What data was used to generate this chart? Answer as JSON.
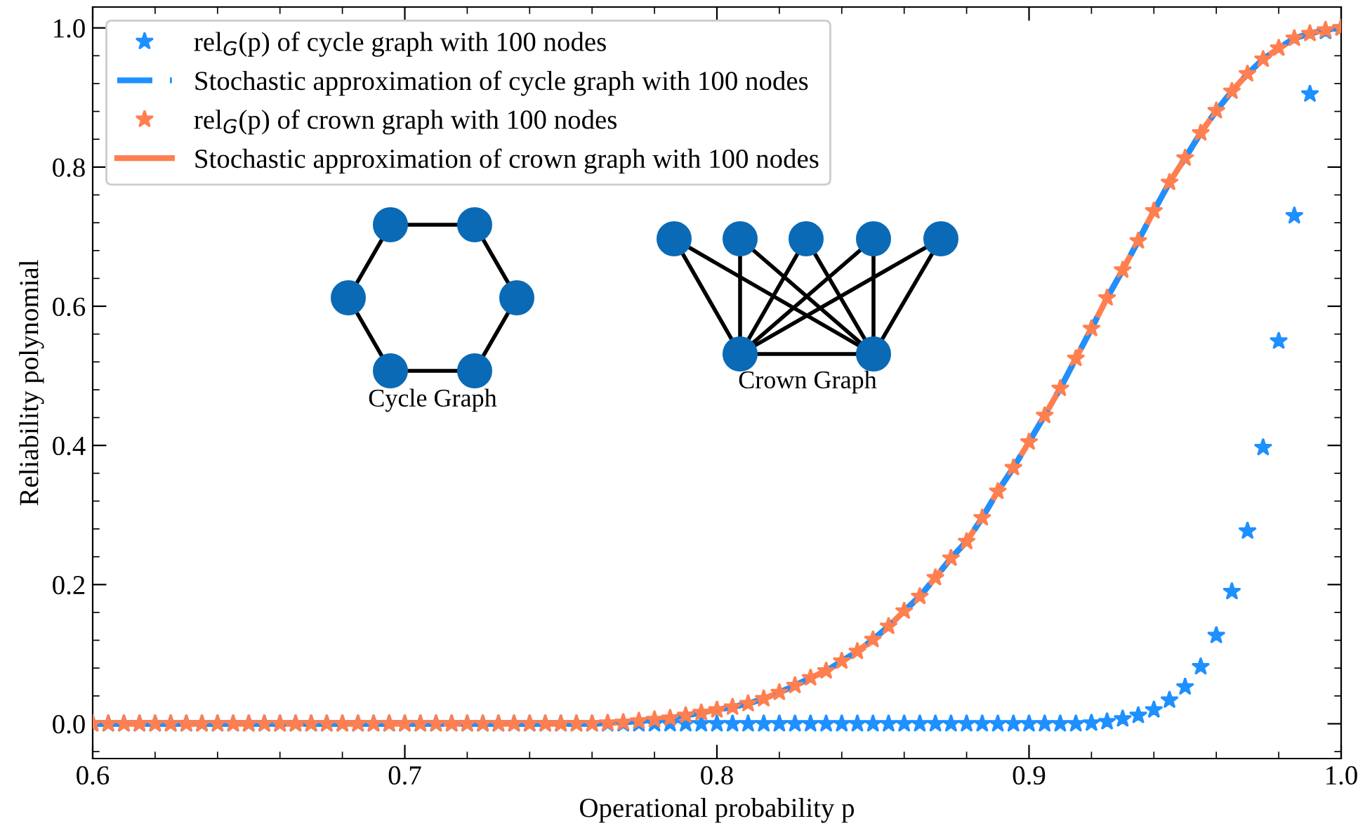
{
  "chart_data": {
    "type": "line",
    "xlabel": "Operational probability p",
    "ylabel": "Reliability polynomial",
    "x": [
      0.6,
      0.605,
      0.61,
      0.615,
      0.62,
      0.625,
      0.63,
      0.635,
      0.64,
      0.645,
      0.65,
      0.655,
      0.66,
      0.665,
      0.67,
      0.675,
      0.68,
      0.685,
      0.69,
      0.695,
      0.7,
      0.705,
      0.71,
      0.715,
      0.72,
      0.725,
      0.73,
      0.735,
      0.74,
      0.745,
      0.75,
      0.755,
      0.76,
      0.765,
      0.77,
      0.775,
      0.78,
      0.785,
      0.79,
      0.795,
      0.8,
      0.805,
      0.81,
      0.815,
      0.82,
      0.825,
      0.83,
      0.835,
      0.84,
      0.845,
      0.85,
      0.855,
      0.86,
      0.865,
      0.87,
      0.875,
      0.88,
      0.885,
      0.89,
      0.895,
      0.9,
      0.905,
      0.91,
      0.915,
      0.92,
      0.925,
      0.93,
      0.935,
      0.94,
      0.945,
      0.95,
      0.955,
      0.96,
      0.965,
      0.97,
      0.975,
      0.98,
      0.985,
      0.99,
      0.995,
      1.0
    ],
    "series": [
      {
        "name": "rel$_{G}$(p) of cycle graph with 100 nodes",
        "type": "scatter",
        "marker": "star",
        "color": "#1e90ff",
        "values": [
          0,
          0,
          0,
          0,
          0,
          0,
          0,
          0,
          0,
          0,
          0,
          0,
          0,
          0,
          0,
          0,
          0,
          0,
          0,
          0,
          0,
          0,
          0,
          0,
          0,
          0,
          0,
          0,
          0,
          0,
          0,
          0,
          0,
          0,
          0,
          0,
          0,
          0,
          0,
          0,
          0,
          0,
          0,
          0,
          0,
          0,
          0,
          0,
          0,
          0,
          0,
          0,
          0,
          0,
          0,
          0,
          0,
          0,
          0,
          0,
          0,
          0,
          0,
          0,
          0.001,
          0.003,
          0.007,
          0.012,
          0.02,
          0.034,
          0.053,
          0.082,
          0.127,
          0.19,
          0.277,
          0.397,
          0.55,
          0.73,
          0.905,
          0.995,
          1.0
        ]
      },
      {
        "name": "Stochastic approximation of cycle graph with 100 nodes",
        "line_style": "dashed",
        "color": "#1e90ff",
        "values": [
          0,
          0,
          0,
          0,
          0,
          0,
          0,
          0,
          0,
          0,
          0,
          0,
          0,
          0,
          0,
          0,
          0,
          0,
          0,
          0,
          0,
          0,
          0,
          0,
          0,
          0,
          0,
          0,
          0,
          0,
          0,
          0,
          0,
          0.001,
          0.002,
          0.004,
          0.006,
          0.008,
          0.012,
          0.016,
          0.02,
          0.024,
          0.029,
          0.036,
          0.045,
          0.055,
          0.066,
          0.076,
          0.09,
          0.104,
          0.121,
          0.14,
          0.162,
          0.183,
          0.21,
          0.238,
          0.262,
          0.296,
          0.334,
          0.368,
          0.405,
          0.443,
          0.482,
          0.525,
          0.568,
          0.612,
          0.652,
          0.694,
          0.737,
          0.778,
          0.813,
          0.849,
          0.881,
          0.909,
          0.934,
          0.955,
          0.971,
          0.985,
          0.992,
          0.997,
          1.0
        ]
      },
      {
        "name": "rel$_{G}$(p) of crown graph with 100 nodes",
        "type": "scatter",
        "marker": "star",
        "color": "#ff7f50",
        "values": [
          0,
          0,
          0,
          0,
          0,
          0,
          0,
          0,
          0,
          0,
          0,
          0,
          0,
          0,
          0,
          0,
          0,
          0,
          0,
          0,
          0,
          0,
          0,
          0,
          0,
          0,
          0,
          0,
          0,
          0,
          0,
          0,
          0,
          0.001,
          0.002,
          0.004,
          0.006,
          0.008,
          0.012,
          0.016,
          0.02,
          0.024,
          0.029,
          0.036,
          0.045,
          0.055,
          0.066,
          0.076,
          0.09,
          0.104,
          0.121,
          0.14,
          0.162,
          0.183,
          0.21,
          0.238,
          0.262,
          0.296,
          0.334,
          0.368,
          0.405,
          0.443,
          0.482,
          0.525,
          0.568,
          0.612,
          0.652,
          0.694,
          0.737,
          0.778,
          0.813,
          0.849,
          0.881,
          0.909,
          0.934,
          0.955,
          0.971,
          0.985,
          0.992,
          0.997,
          1.0
        ]
      },
      {
        "name": "Stochastic approximation of crown graph with 100 nodes",
        "line_style": "solid",
        "color": "#ff7f50",
        "values": [
          0,
          0,
          0,
          0,
          0,
          0,
          0,
          0,
          0,
          0,
          0,
          0,
          0,
          0,
          0,
          0,
          0,
          0,
          0,
          0,
          0,
          0,
          0,
          0,
          0,
          0,
          0,
          0,
          0,
          0,
          0,
          0,
          0,
          0.001,
          0.002,
          0.004,
          0.006,
          0.008,
          0.012,
          0.016,
          0.02,
          0.024,
          0.029,
          0.036,
          0.045,
          0.055,
          0.066,
          0.076,
          0.09,
          0.104,
          0.121,
          0.14,
          0.162,
          0.183,
          0.21,
          0.238,
          0.262,
          0.296,
          0.334,
          0.368,
          0.405,
          0.443,
          0.482,
          0.525,
          0.568,
          0.612,
          0.652,
          0.694,
          0.737,
          0.778,
          0.813,
          0.849,
          0.881,
          0.909,
          0.934,
          0.955,
          0.971,
          0.985,
          0.992,
          0.997,
          1.0
        ]
      }
    ],
    "xlim": [
      0.6,
      1.0
    ],
    "xticks": [
      0.6,
      0.7,
      0.8,
      0.9,
      {
        "value": 1,
        "label": "1.0"
      }
    ],
    "ylim": [
      -0.05,
      1.03
    ],
    "yticks": [
      {
        "value": 0,
        "label": "0.0"
      },
      0.2,
      0.4,
      0.6,
      0.8,
      {
        "value": 1,
        "label": "1.0"
      }
    ],
    "grid": false,
    "legend": "top left",
    "annotations": [
      "Cycle Graph",
      "Crown Graph"
    ]
  }
}
